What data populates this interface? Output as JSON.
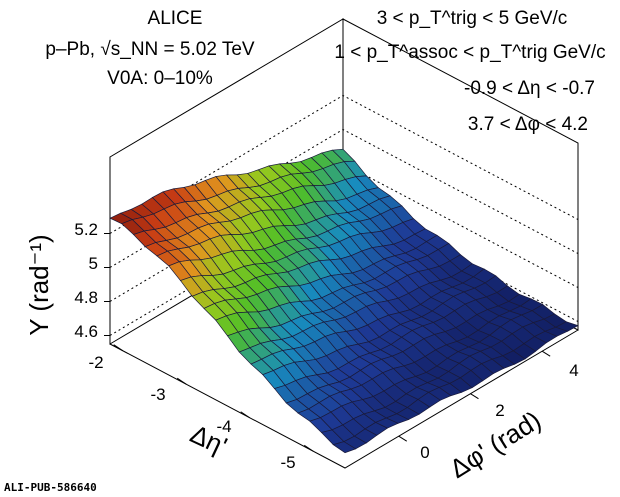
{
  "chart_data": {
    "type": "surface3d",
    "title_lines": [
      "ALICE",
      "p–Pb, √s_NN = 5.02 TeV",
      "V0A: 0–10%"
    ],
    "cut_lines": [
      "3 < p_T^trig < 5 GeV/c",
      "1 < p_T^assoc < p_T^trig GeV/c",
      "-0.9 < Δη < -0.7",
      "3.7 < Δφ < 4.2"
    ],
    "zlabel": "Y (rad⁻¹)",
    "xlabel": "Δη'",
    "ylabel": "Δφ' (rad)",
    "zticks": [
      4.6,
      4.8,
      5.0,
      5.2
    ],
    "xticks": [
      -2,
      -3,
      -4,
      -5
    ],
    "yticks": [
      0,
      2,
      4
    ],
    "xlim": [
      -5.5,
      -1.8
    ],
    "ylim": [
      -1.5,
      5.0
    ],
    "zlim": [
      4.55,
      5.35
    ],
    "grid_size": [
      20,
      22
    ],
    "surface_description_values": {
      "peak": {
        "deta": -1.9,
        "dphi": -1.4,
        "value": 5.3
      },
      "left_edge_value": 4.95,
      "right_corner_value": 4.62,
      "far_corner_value": 4.55
    },
    "colors": {
      "high": "#8b1a10",
      "mid_high": "#e8a020",
      "mid": "#5cc020",
      "mid_low": "#18a0b0",
      "low": "#1e3a90",
      "lowest": "#101a5a"
    },
    "watermark": "ALI-PUB-586640"
  }
}
